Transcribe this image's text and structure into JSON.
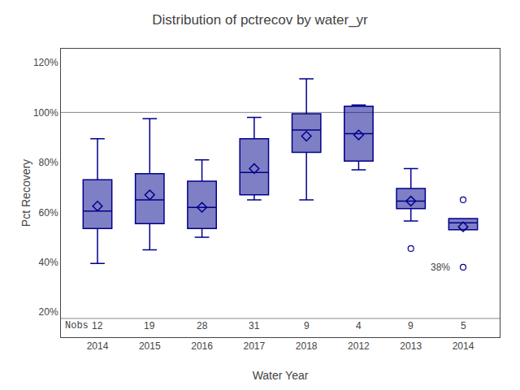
{
  "chart_data": {
    "type": "box",
    "title": "Distribution of pctrecov by water_yr",
    "xlabel": "Water Year",
    "ylabel": "Pct Recovery",
    "categories": [
      "2014",
      "2015",
      "2016",
      "2017",
      "2018",
      "2012",
      "2013",
      "2014"
    ],
    "q1": [
      0.535,
      0.555,
      0.535,
      0.67,
      0.84,
      0.805,
      0.615,
      0.53
    ],
    "median": [
      0.605,
      0.65,
      0.62,
      0.76,
      0.93,
      0.915,
      0.645,
      0.558
    ],
    "q3": [
      0.73,
      0.755,
      0.725,
      0.895,
      0.995,
      1.025,
      0.695,
      0.575
    ],
    "whisker_low": [
      0.395,
      0.45,
      0.5,
      0.65,
      0.65,
      0.77,
      0.565,
      0.53
    ],
    "whisker_high": [
      0.895,
      0.975,
      0.81,
      0.98,
      1.135,
      1.03,
      0.775,
      0.575
    ],
    "mean": [
      0.625,
      0.67,
      0.62,
      0.775,
      0.905,
      0.91,
      0.645,
      0.542
    ],
    "fliers": [
      [],
      [],
      [],
      [],
      [],
      [],
      [
        0.455
      ],
      [
        0.38,
        0.65
      ]
    ],
    "nobs": [
      12,
      19,
      28,
      31,
      9,
      4,
      9,
      5
    ],
    "nobs_label": "Nobs",
    "nobs_y": 0.145,
    "annotations": [
      {
        "text": "38%",
        "index": 7,
        "y": 0.38
      }
    ],
    "hlines": [
      1.0,
      0.175
    ],
    "color": "#00008B",
    "ylim": [
      0.1,
      1.255
    ],
    "yticks": [
      {
        "value": 0.2,
        "label": "20%"
      },
      {
        "value": 0.4,
        "label": "40%"
      },
      {
        "value": 0.6,
        "label": "60%"
      },
      {
        "value": 0.8,
        "label": "80%"
      },
      {
        "value": 1.0,
        "label": "100%"
      },
      {
        "value": 1.2,
        "label": "120%"
      }
    ],
    "grid": false
  }
}
